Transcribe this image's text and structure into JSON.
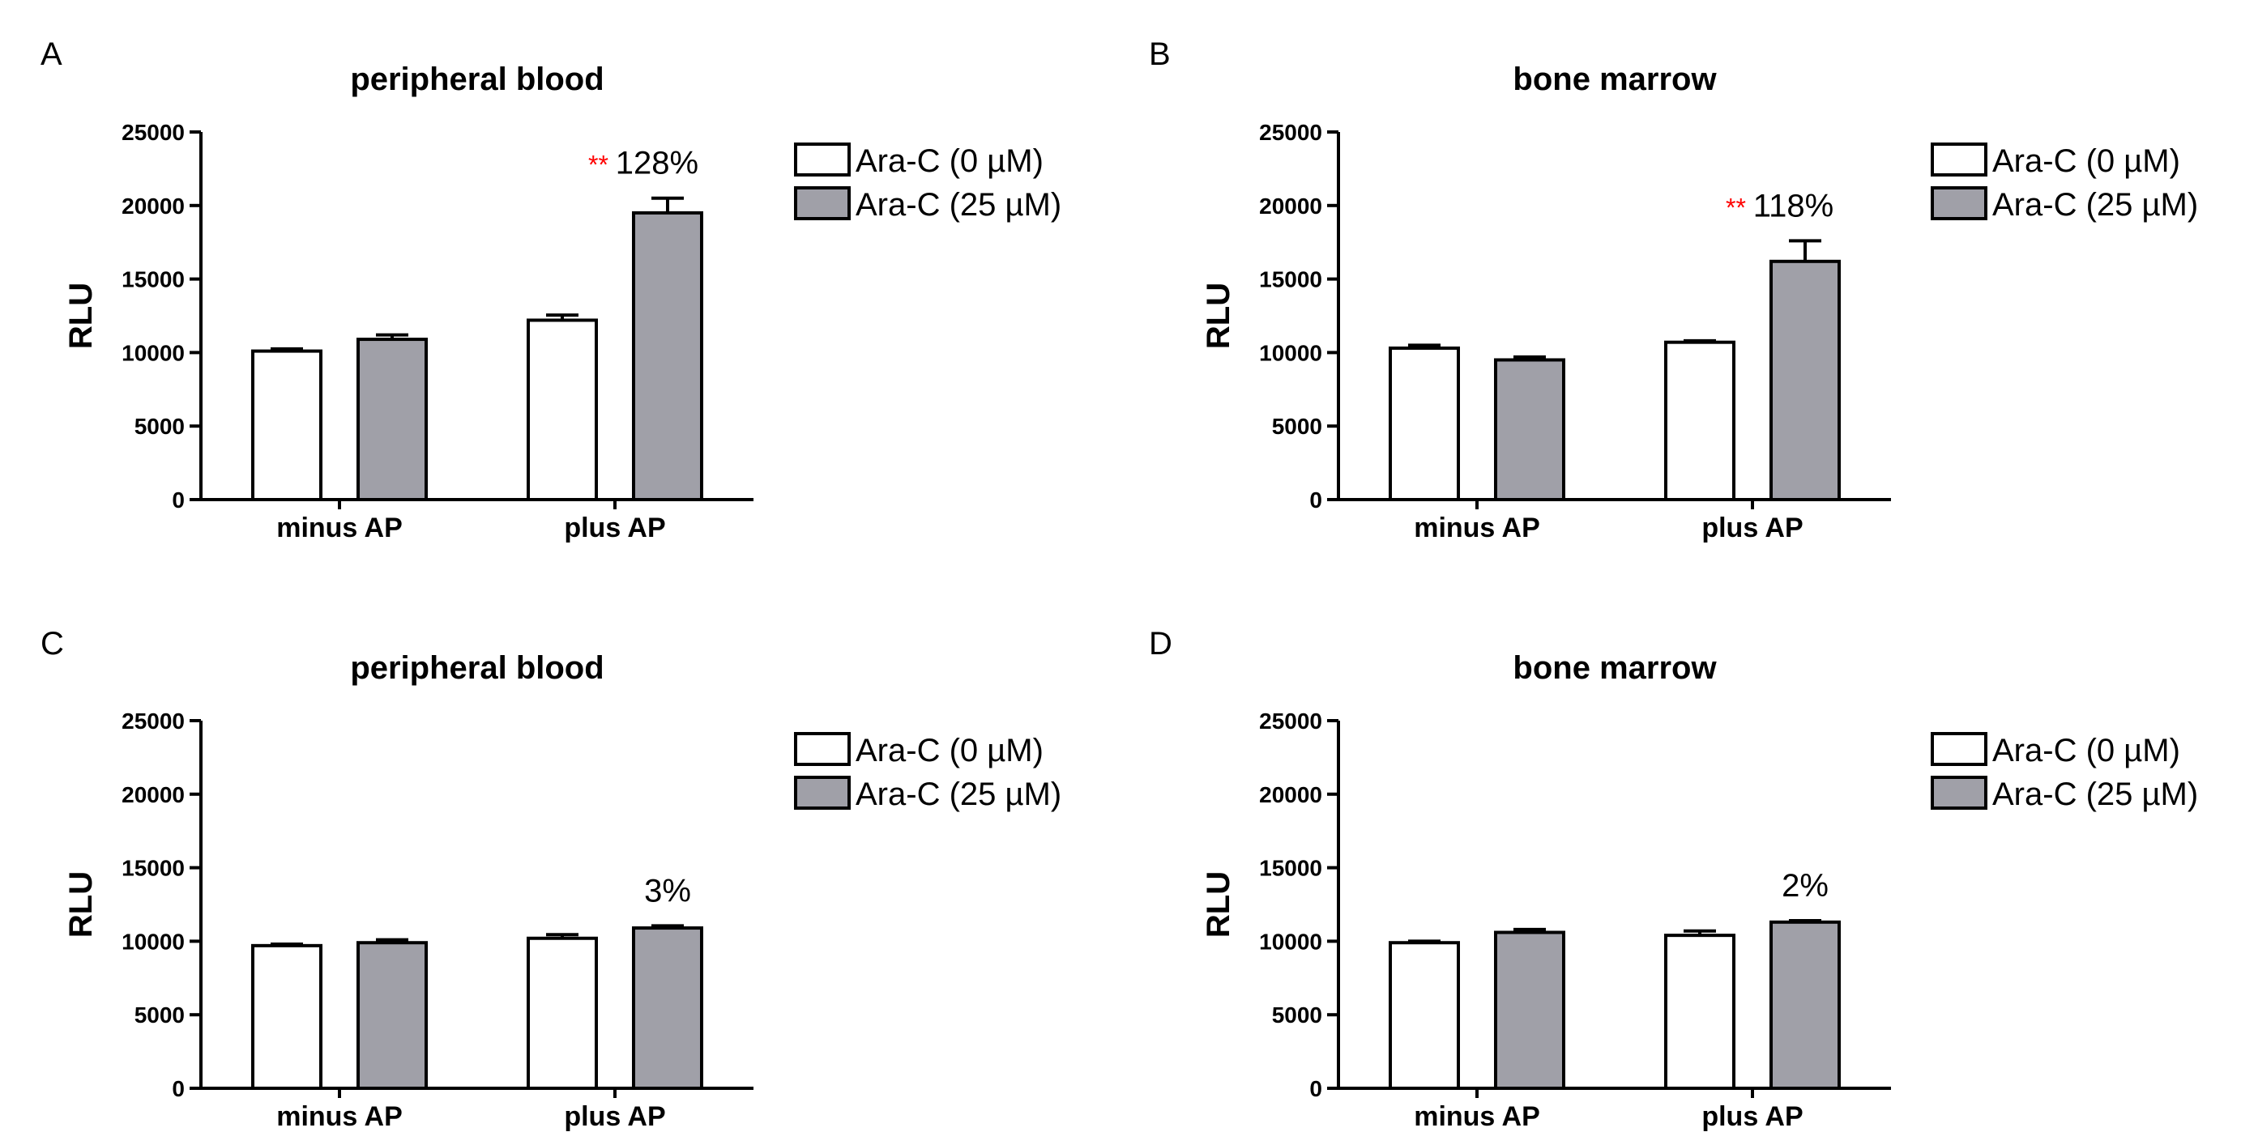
{
  "chart_data": [
    {
      "panel": "A",
      "type": "bar",
      "title": "peripheral blood",
      "ylabel": "RLU",
      "xlabel": "",
      "ylim": [
        0,
        25000
      ],
      "yticks": [
        "0",
        "5000",
        "10000",
        "15000",
        "20000",
        "25000"
      ],
      "categories": [
        "minus AP",
        "plus AP"
      ],
      "series": [
        {
          "name": "Ara-C (0 µM)",
          "values": [
            10100,
            12200
          ],
          "errors": [
            150,
            350
          ]
        },
        {
          "name": "Ara-C (25 µM)",
          "values": [
            10900,
            19500
          ],
          "errors": [
            300,
            1000
          ]
        }
      ],
      "annotation": {
        "stars": "**",
        "text": "128%"
      },
      "legend": "top-right"
    },
    {
      "panel": "B",
      "type": "bar",
      "title": "bone marrow",
      "ylabel": "RLU",
      "xlabel": "",
      "ylim": [
        0,
        25000
      ],
      "yticks": [
        "0",
        "5000",
        "10000",
        "15000",
        "20000",
        "25000"
      ],
      "categories": [
        "minus AP",
        "plus AP"
      ],
      "series": [
        {
          "name": "Ara-C (0 µM)",
          "values": [
            10300,
            10700
          ],
          "errors": [
            200,
            100
          ]
        },
        {
          "name": "Ara-C (25 µM)",
          "values": [
            9500,
            16200
          ],
          "errors": [
            200,
            1400
          ]
        }
      ],
      "annotation": {
        "stars": "**",
        "text": "118%"
      },
      "legend": "top-right"
    },
    {
      "panel": "C",
      "type": "bar",
      "title": "peripheral blood",
      "ylabel": "RLU",
      "xlabel": "",
      "ylim": [
        0,
        25000
      ],
      "yticks": [
        "0",
        "5000",
        "10000",
        "15000",
        "20000",
        "25000"
      ],
      "categories": [
        "minus AP",
        "plus AP"
      ],
      "series": [
        {
          "name": "Ara-C (0 µM)",
          "values": [
            9700,
            10200
          ],
          "errors": [
            100,
            250
          ]
        },
        {
          "name": "Ara-C (25 µM)",
          "values": [
            9900,
            10900
          ],
          "errors": [
            200,
            150
          ]
        }
      ],
      "annotation": {
        "stars": "",
        "text": "3%"
      },
      "legend": "top-right"
    },
    {
      "panel": "D",
      "type": "bar",
      "title": "bone marrow",
      "ylabel": "RLU",
      "xlabel": "",
      "ylim": [
        0,
        25000
      ],
      "yticks": [
        "0",
        "5000",
        "10000",
        "15000",
        "20000",
        "25000"
      ],
      "categories": [
        "minus AP",
        "plus AP"
      ],
      "series": [
        {
          "name": "Ara-C (0 µM)",
          "values": [
            9900,
            10400
          ],
          "errors": [
            100,
            300
          ]
        },
        {
          "name": "Ara-C (25 µM)",
          "values": [
            10600,
            11300
          ],
          "errors": [
            200,
            100
          ]
        }
      ],
      "annotation": {
        "stars": "",
        "text": "2%"
      },
      "legend": "top-right"
    }
  ],
  "colors": {
    "control_fill": "#ffffff",
    "treated_fill": "#a0a0a8",
    "stroke": "#000000",
    "stars": "#ff0000"
  }
}
